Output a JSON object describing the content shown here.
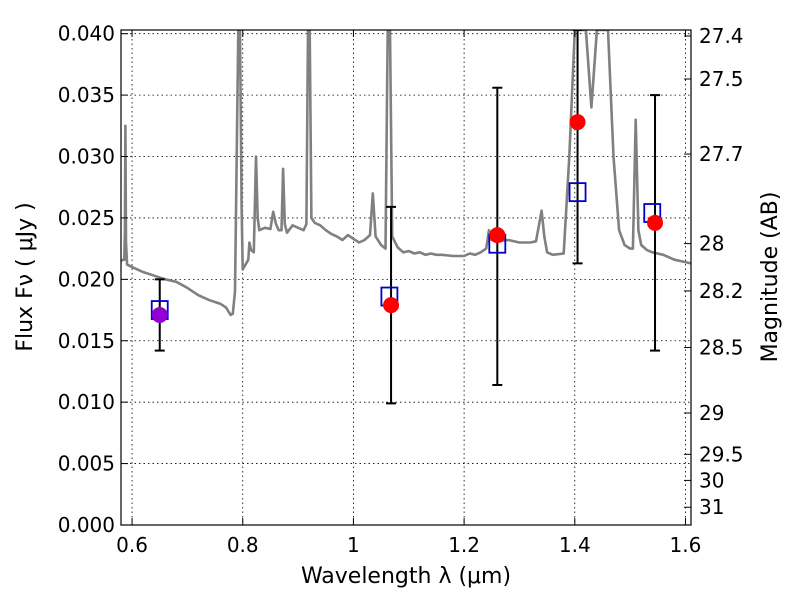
{
  "chart_data": {
    "type": "scatter",
    "xlabel": "Wavelength  λ (μm)",
    "ylabel": "Flux  Fν  ( μJy )",
    "ylabel_right": "Magnitude (AB)",
    "xlim": [
      0.58,
      1.61
    ],
    "ylim": [
      0.0,
      0.0403
    ],
    "grid": true,
    "x_ticks": [
      {
        "v": 0.6,
        "label": "0.6"
      },
      {
        "v": 0.8,
        "label": "0.8"
      },
      {
        "v": 1.0,
        "label": "1"
      },
      {
        "v": 1.2,
        "label": "1.2"
      },
      {
        "v": 1.4,
        "label": "1.4"
      },
      {
        "v": 1.6,
        "label": "1.6"
      }
    ],
    "y_ticks": [
      {
        "v": 0.0,
        "label": "0.000"
      },
      {
        "v": 0.005,
        "label": "0.005"
      },
      {
        "v": 0.01,
        "label": "0.010"
      },
      {
        "v": 0.015,
        "label": "0.015"
      },
      {
        "v": 0.02,
        "label": "0.020"
      },
      {
        "v": 0.025,
        "label": "0.025"
      },
      {
        "v": 0.03,
        "label": "0.030"
      },
      {
        "v": 0.035,
        "label": "0.035"
      },
      {
        "v": 0.04,
        "label": "0.040"
      }
    ],
    "mag_ticks": [
      {
        "mag": 27.4,
        "label": "27.4"
      },
      {
        "mag": 27.5,
        "label": "27.5"
      },
      {
        "mag": 27.7,
        "label": "27.7"
      },
      {
        "mag": 28.0,
        "label": "28"
      },
      {
        "mag": 28.2,
        "label": "28.2"
      },
      {
        "mag": 28.5,
        "label": "28.5"
      },
      {
        "mag": 29.0,
        "label": "29"
      },
      {
        "mag": 29.5,
        "label": "29.5"
      },
      {
        "mag": 30.0,
        "label": "30"
      },
      {
        "mag": 31.0,
        "label": "31"
      }
    ],
    "spectrum": {
      "name": "model spectrum",
      "color": "#808080",
      "points": [
        [
          0.58,
          0.0215
        ],
        [
          0.584,
          0.0216
        ],
        [
          0.586,
          0.0216
        ],
        [
          0.587,
          0.024
        ],
        [
          0.588,
          0.0325
        ],
        [
          0.589,
          0.023
        ],
        [
          0.591,
          0.0212
        ],
        [
          0.6,
          0.021
        ],
        [
          0.62,
          0.0206
        ],
        [
          0.64,
          0.0203
        ],
        [
          0.66,
          0.02
        ],
        [
          0.68,
          0.0198
        ],
        [
          0.7,
          0.0193
        ],
        [
          0.72,
          0.0187
        ],
        [
          0.74,
          0.0183
        ],
        [
          0.76,
          0.018
        ],
        [
          0.77,
          0.0177
        ],
        [
          0.778,
          0.0171
        ],
        [
          0.782,
          0.0172
        ],
        [
          0.786,
          0.019
        ],
        [
          0.789,
          0.03
        ],
        [
          0.792,
          0.0403
        ],
        [
          0.795,
          0.0403
        ],
        [
          0.798,
          0.026
        ],
        [
          0.8,
          0.0208
        ],
        [
          0.805,
          0.0212
        ],
        [
          0.81,
          0.0216
        ],
        [
          0.812,
          0.023
        ],
        [
          0.815,
          0.0224
        ],
        [
          0.82,
          0.0222
        ],
        [
          0.824,
          0.03
        ],
        [
          0.827,
          0.025
        ],
        [
          0.83,
          0.024
        ],
        [
          0.84,
          0.0242
        ],
        [
          0.85,
          0.0241
        ],
        [
          0.855,
          0.0255
        ],
        [
          0.86,
          0.0245
        ],
        [
          0.865,
          0.024
        ],
        [
          0.87,
          0.024
        ],
        [
          0.873,
          0.029
        ],
        [
          0.876,
          0.0245
        ],
        [
          0.88,
          0.0238
        ],
        [
          0.89,
          0.0244
        ],
        [
          0.9,
          0.0242
        ],
        [
          0.91,
          0.024
        ],
        [
          0.915,
          0.0245
        ],
        [
          0.918,
          0.0403
        ],
        [
          0.921,
          0.0403
        ],
        [
          0.924,
          0.025
        ],
        [
          0.93,
          0.0246
        ],
        [
          0.94,
          0.0244
        ],
        [
          0.95,
          0.024
        ],
        [
          0.96,
          0.0237
        ],
        [
          0.97,
          0.0235
        ],
        [
          0.98,
          0.0232
        ],
        [
          0.99,
          0.0236
        ],
        [
          1.0,
          0.0233
        ],
        [
          1.01,
          0.023
        ],
        [
          1.02,
          0.0232
        ],
        [
          1.03,
          0.0236
        ],
        [
          1.035,
          0.027
        ],
        [
          1.04,
          0.0235
        ],
        [
          1.05,
          0.0228
        ],
        [
          1.058,
          0.0225
        ],
        [
          1.062,
          0.0403
        ],
        [
          1.066,
          0.0403
        ],
        [
          1.07,
          0.0235
        ],
        [
          1.08,
          0.0226
        ],
        [
          1.09,
          0.0222
        ],
        [
          1.1,
          0.0223
        ],
        [
          1.11,
          0.0221
        ],
        [
          1.12,
          0.0222
        ],
        [
          1.13,
          0.022
        ],
        [
          1.14,
          0.0221
        ],
        [
          1.15,
          0.022
        ],
        [
          1.16,
          0.022
        ],
        [
          1.18,
          0.0219
        ],
        [
          1.2,
          0.0219
        ],
        [
          1.21,
          0.0221
        ],
        [
          1.22,
          0.022
        ],
        [
          1.23,
          0.0222
        ],
        [
          1.24,
          0.0225
        ],
        [
          1.245,
          0.024
        ],
        [
          1.25,
          0.0232
        ],
        [
          1.26,
          0.0231
        ],
        [
          1.28,
          0.0232
        ],
        [
          1.3,
          0.023
        ],
        [
          1.32,
          0.023
        ],
        [
          1.33,
          0.0231
        ],
        [
          1.34,
          0.0256
        ],
        [
          1.345,
          0.0235
        ],
        [
          1.35,
          0.0222
        ],
        [
          1.36,
          0.022
        ],
        [
          1.38,
          0.0221
        ],
        [
          1.39,
          0.03
        ],
        [
          1.4,
          0.0403
        ],
        [
          1.42,
          0.0403
        ],
        [
          1.43,
          0.034
        ],
        [
          1.44,
          0.0403
        ],
        [
          1.46,
          0.0403
        ],
        [
          1.47,
          0.03
        ],
        [
          1.48,
          0.024
        ],
        [
          1.49,
          0.0228
        ],
        [
          1.5,
          0.0225
        ],
        [
          1.505,
          0.0225
        ],
        [
          1.51,
          0.033
        ],
        [
          1.515,
          0.024
        ],
        [
          1.52,
          0.0228
        ],
        [
          1.53,
          0.0224
        ],
        [
          1.54,
          0.0222
        ],
        [
          1.56,
          0.022
        ],
        [
          1.58,
          0.0216
        ],
        [
          1.6,
          0.0214
        ],
        [
          1.61,
          0.0213
        ]
      ]
    },
    "model_points": [
      {
        "x": 0.65,
        "y": 0.0175
      },
      {
        "x": 1.065,
        "y": 0.0186
      },
      {
        "x": 1.26,
        "y": 0.0229
      },
      {
        "x": 1.405,
        "y": 0.0271
      },
      {
        "x": 1.54,
        "y": 0.0254
      }
    ],
    "observed_points": [
      {
        "x": 0.65,
        "y": 0.0171,
        "lo": 0.0142,
        "hi": 0.02,
        "color": "#9400d3"
      },
      {
        "x": 1.068,
        "y": 0.0179,
        "lo": 0.0099,
        "hi": 0.0259,
        "color": "#ff0000"
      },
      {
        "x": 1.26,
        "y": 0.0236,
        "lo": 0.0114,
        "hi": 0.0356,
        "color": "#ff0000"
      },
      {
        "x": 1.405,
        "y": 0.0328,
        "lo": 0.0213,
        "hi": 0.0403,
        "color": "#ff0000"
      },
      {
        "x": 1.545,
        "y": 0.0246,
        "lo": 0.0142,
        "hi": 0.035,
        "color": "#ff0000"
      }
    ],
    "colors": {
      "model_box": "#0000cc",
      "errorbar": "#000000",
      "spectrum": "#808080"
    }
  }
}
